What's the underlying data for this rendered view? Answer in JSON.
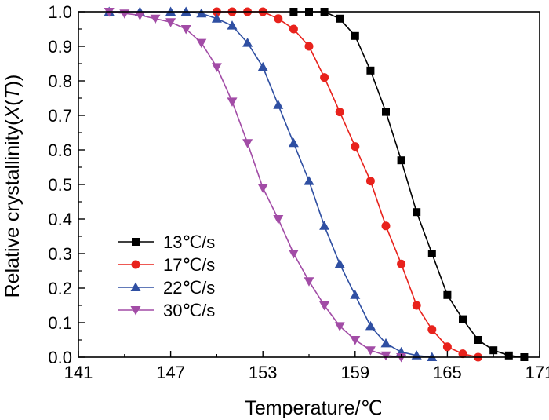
{
  "chart_data": {
    "type": "line",
    "title": "",
    "xlabel": "Temperature/℃",
    "ylabel": "Relative crystallinity(X(T))",
    "ylabel_parts": {
      "prefix": "Relative crystallinity(",
      "var": "X",
      "open": "(",
      "arg": "T",
      "close": "))"
    },
    "xlim": [
      141,
      171
    ],
    "ylim": [
      0,
      1.0
    ],
    "xticks": [
      141,
      147,
      153,
      159,
      165,
      171
    ],
    "xtick_labels": [
      "141",
      "147",
      "153",
      "159",
      "165",
      "171"
    ],
    "yticks": [
      0,
      0.1,
      0.2,
      0.3,
      0.4,
      0.5,
      0.6,
      0.7,
      0.8,
      0.9,
      1.0
    ],
    "ytick_labels": [
      "0.0",
      "0.1",
      "0.2",
      "0.3",
      "0.4",
      "0.5",
      "0.6",
      "0.7",
      "0.8",
      "0.9",
      "1.0"
    ],
    "legend_position": "bottom-left",
    "series": [
      {
        "name": "13℃/s",
        "color": "#000000",
        "marker": "square",
        "x": [
          155,
          156,
          157,
          158,
          159,
          160,
          161,
          162,
          163,
          164,
          165,
          166,
          167,
          168,
          169,
          170
        ],
        "y": [
          1.0,
          1.0,
          1.0,
          0.98,
          0.93,
          0.83,
          0.71,
          0.57,
          0.42,
          0.3,
          0.18,
          0.11,
          0.05,
          0.02,
          0.005,
          0.0
        ]
      },
      {
        "name": "17℃/s",
        "color": "#e8221c",
        "marker": "circle",
        "x": [
          150,
          151,
          152,
          153,
          154,
          155,
          156,
          157,
          158,
          159,
          160,
          161,
          162,
          163,
          164,
          165,
          166,
          167
        ],
        "y": [
          1.0,
          1.0,
          1.0,
          1.0,
          0.98,
          0.95,
          0.9,
          0.81,
          0.71,
          0.61,
          0.51,
          0.38,
          0.27,
          0.15,
          0.08,
          0.03,
          0.01,
          0.0
        ]
      },
      {
        "name": "22℃/s",
        "color": "#2f4fa2",
        "marker": "triangle-up",
        "x": [
          143,
          145,
          147,
          148,
          149,
          150,
          151,
          152,
          153,
          154,
          155,
          156,
          157,
          158,
          159,
          160,
          161,
          162,
          163,
          164
        ],
        "y": [
          1.0,
          1.0,
          1.0,
          1.0,
          0.995,
          0.98,
          0.96,
          0.91,
          0.84,
          0.73,
          0.62,
          0.51,
          0.38,
          0.27,
          0.18,
          0.09,
          0.04,
          0.015,
          0.005,
          0.0
        ]
      },
      {
        "name": "30℃/s",
        "color": "#a24ca6",
        "marker": "triangle-down",
        "x": [
          143,
          144,
          145,
          146,
          147,
          148,
          149,
          150,
          151,
          152,
          153,
          154,
          155,
          156,
          157,
          158,
          159,
          160,
          161,
          162
        ],
        "y": [
          1.0,
          0.995,
          0.99,
          0.98,
          0.97,
          0.95,
          0.91,
          0.84,
          0.74,
          0.62,
          0.49,
          0.4,
          0.3,
          0.22,
          0.15,
          0.09,
          0.05,
          0.02,
          0.005,
          0.0
        ]
      }
    ]
  }
}
